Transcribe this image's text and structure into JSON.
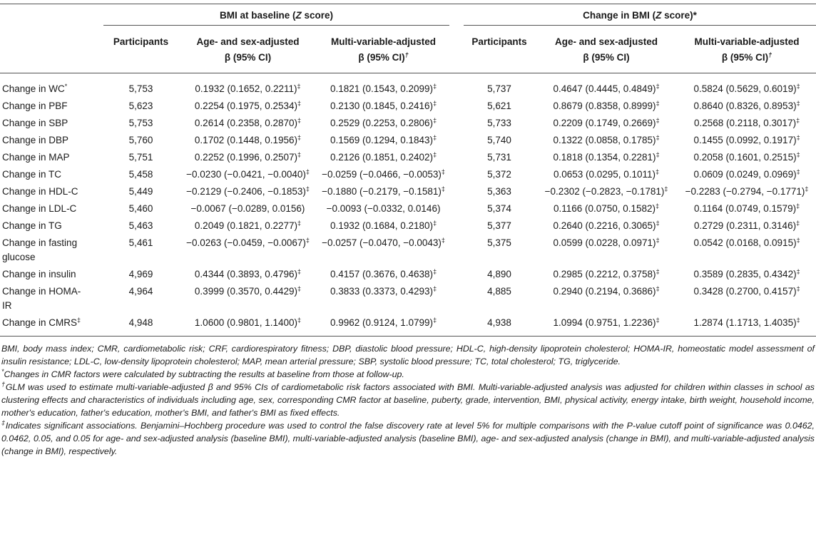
{
  "table": {
    "groups": [
      {
        "title": [
          {
            "text": "BMI at baseline ("
          },
          {
            "text": "Z",
            "italic": true
          },
          {
            "text": " score)"
          }
        ],
        "columns": [
          {
            "line1": "Participants"
          },
          {
            "line1": "Age- and sex-adjusted",
            "line2": "β (95% CI)"
          },
          {
            "line1": "Multi-variable-adjusted",
            "line2": "β (95% CI)",
            "mark": "†"
          }
        ]
      },
      {
        "title": [
          {
            "text": "Change in BMI ("
          },
          {
            "text": "Z",
            "italic": true
          },
          {
            "text": " score)*"
          }
        ],
        "columns": [
          {
            "line1": "Participants"
          },
          {
            "line1": "Age- and sex-adjusted",
            "line2": "β (95% CI)"
          },
          {
            "line1": "Multi-variable-adjusted",
            "line2": "β (95% CI)",
            "mark": "†"
          }
        ]
      }
    ],
    "rows": [
      {
        "label": "Change in WC",
        "label_mark": "*",
        "cells": [
          {
            "text": "5,753"
          },
          {
            "text": "0.1932 (0.1652, 0.2211)",
            "mark": "‡"
          },
          {
            "text": "0.1821 (0.1543, 0.2099)",
            "mark": "‡"
          },
          {
            "text": "5,737"
          },
          {
            "text": "0.4647 (0.4445, 0.4849)",
            "mark": "‡"
          },
          {
            "text": "0.5824 (0.5629, 0.6019)",
            "mark": "‡"
          }
        ]
      },
      {
        "label": "Change in PBF",
        "cells": [
          {
            "text": "5,623"
          },
          {
            "text": "0.2254 (0.1975, 0.2534)",
            "mark": "‡"
          },
          {
            "text": "0.2130 (0.1845, 0.2416)",
            "mark": "‡"
          },
          {
            "text": "5,621"
          },
          {
            "text": "0.8679 (0.8358, 0.8999)",
            "mark": "‡"
          },
          {
            "text": "0.8640 (0.8326, 0.8953)",
            "mark": "‡"
          }
        ]
      },
      {
        "label": "Change in SBP",
        "cells": [
          {
            "text": "5,753"
          },
          {
            "text": "0.2614 (0.2358, 0.2870)",
            "mark": "‡"
          },
          {
            "text": "0.2529 (0.2253, 0.2806)",
            "mark": "‡"
          },
          {
            "text": "5,733"
          },
          {
            "text": "0.2209 (0.1749, 0.2669)",
            "mark": "‡"
          },
          {
            "text": "0.2568 (0.2118, 0.3017)",
            "mark": "‡"
          }
        ]
      },
      {
        "label": "Change in DBP",
        "cells": [
          {
            "text": "5,760"
          },
          {
            "text": "0.1702 (0.1448, 0.1956)",
            "mark": "‡"
          },
          {
            "text": "0.1569 (0.1294, 0.1843)",
            "mark": "‡"
          },
          {
            "text": "5,740"
          },
          {
            "text": "0.1322 (0.0858, 0.1785)",
            "mark": "‡"
          },
          {
            "text": "0.1455 (0.0992, 0.1917)",
            "mark": "‡"
          }
        ]
      },
      {
        "label": "Change in MAP",
        "cells": [
          {
            "text": "5,751"
          },
          {
            "text": "0.2252 (0.1996, 0.2507)",
            "mark": "‡"
          },
          {
            "text": "0.2126 (0.1851, 0.2402)",
            "mark": "‡"
          },
          {
            "text": "5,731"
          },
          {
            "text": "0.1818 (0.1354, 0.2281)",
            "mark": "‡"
          },
          {
            "text": "0.2058 (0.1601, 0.2515)",
            "mark": "‡"
          }
        ]
      },
      {
        "label": "Change in TC",
        "cells": [
          {
            "text": "5,458"
          },
          {
            "text": "−0.0230 (−0.0421, −0.0040)",
            "mark": "‡"
          },
          {
            "text": "−0.0259 (−0.0466, −0.0053)",
            "mark": "‡"
          },
          {
            "text": "5,372"
          },
          {
            "text": "0.0653 (0.0295, 0.1011)",
            "mark": "‡"
          },
          {
            "text": "0.0609 (0.0249, 0.0969)",
            "mark": "‡"
          }
        ]
      },
      {
        "label": "Change in HDL-C",
        "cells": [
          {
            "text": "5,449"
          },
          {
            "text": "−0.2129 (−0.2406, −0.1853)",
            "mark": "‡"
          },
          {
            "text": "−0.1880 (−0.2179, −0.1581)",
            "mark": "‡"
          },
          {
            "text": "5,363"
          },
          {
            "text": "−0.2302 (−0.2823, −0.1781)",
            "mark": "‡"
          },
          {
            "text": "−0.2283 (−0.2794, −0.1771)",
            "mark": "‡"
          }
        ]
      },
      {
        "label": "Change in LDL-C",
        "cells": [
          {
            "text": "5,460"
          },
          {
            "text": "−0.0067 (−0.0289, 0.0156)"
          },
          {
            "text": "−0.0093 (−0.0332, 0.0146)"
          },
          {
            "text": "5,374"
          },
          {
            "text": "0.1166 (0.0750, 0.1582)",
            "mark": "‡"
          },
          {
            "text": "0.1164 (0.0749, 0.1579)",
            "mark": "‡"
          }
        ]
      },
      {
        "label": "Change in TG",
        "cells": [
          {
            "text": "5,463"
          },
          {
            "text": "0.2049 (0.1821, 0.2277)",
            "mark": "‡"
          },
          {
            "text": "0.1932 (0.1684, 0.2180)",
            "mark": "‡"
          },
          {
            "text": "5,377"
          },
          {
            "text": "0.2640 (0.2216, 0.3065)",
            "mark": "‡"
          },
          {
            "text": "0.2729 (0.2311, 0.3146)",
            "mark": "‡"
          }
        ]
      },
      {
        "label": "Change in fasting glucose",
        "cells": [
          {
            "text": "5,461"
          },
          {
            "text": "−0.0263 (−0.0459, −0.0067)",
            "mark": "‡"
          },
          {
            "text": "−0.0257 (−0.0470, −0.0043)",
            "mark": "‡"
          },
          {
            "text": "5,375"
          },
          {
            "text": "0.0599 (0.0228, 0.0971)",
            "mark": "‡"
          },
          {
            "text": "0.0542 (0.0168, 0.0915)",
            "mark": "‡"
          }
        ]
      },
      {
        "label": "Change in insulin",
        "cells": [
          {
            "text": "4,969"
          },
          {
            "text": "0.4344 (0.3893, 0.4796)",
            "mark": "‡"
          },
          {
            "text": "0.4157 (0.3676, 0.4638)",
            "mark": "‡"
          },
          {
            "text": "4,890"
          },
          {
            "text": "0.2985 (0.2212, 0.3758)",
            "mark": "‡"
          },
          {
            "text": "0.3589 (0.2835, 0.4342)",
            "mark": "‡"
          }
        ]
      },
      {
        "label": "Change in HOMA-IR",
        "cells": [
          {
            "text": "4,964"
          },
          {
            "text": "0.3999 (0.3570, 0.4429)",
            "mark": "‡"
          },
          {
            "text": "0.3833 (0.3373, 0.4293)",
            "mark": "‡"
          },
          {
            "text": "4,885"
          },
          {
            "text": "0.2940 (0.2194, 0.3686)",
            "mark": "‡"
          },
          {
            "text": "0.3428 (0.2700, 0.4157)",
            "mark": "‡"
          }
        ]
      },
      {
        "label": "Change in CMRS",
        "label_mark": "‡",
        "cells": [
          {
            "text": "4,948"
          },
          {
            "text": "1.0600 (0.9801, 1.1400)",
            "mark": "‡"
          },
          {
            "text": "0.9962 (0.9124, 1.0799)",
            "mark": "‡"
          },
          {
            "text": "4,938"
          },
          {
            "text": "1.0994 (0.9751, 1.2236)",
            "mark": "‡"
          },
          {
            "text": "1.2874 (1.1713, 1.4035)",
            "mark": "‡"
          }
        ]
      }
    ],
    "footnotes": [
      {
        "text": "BMI, body mass index; CMR, cardiometabolic risk; CRF, cardiorespiratory fitness; DBP, diastolic blood pressure; HDL-C, high-density lipoprotein cholesterol; HOMA-IR, homeostatic model assessment of insulin resistance; LDL-C, low-density lipoprotein cholesterol; MAP, mean arterial pressure; SBP, systolic blood pressure; TC, total cholesterol; TG, triglyceride."
      },
      {
        "mark": "*",
        "text": "Changes in CMR factors were calculated by subtracting the results at baseline from those at follow-up."
      },
      {
        "mark": "†",
        "text": "GLM was used to estimate multi-variable-adjusted β and 95% CIs of cardiometabolic risk factors associated with BMI. Multi-variable-adjusted analysis was adjusted for children within classes in school as clustering effects and characteristics of individuals including age, sex, corresponding CMR factor at baseline, puberty, grade, intervention, BMI, physical activity, energy intake, birth weight, household income, mother's education, father's education, mother's BMI, and father's BMI as fixed effects."
      },
      {
        "mark": "‡",
        "text": "Indicates significant associations. Benjamini–Hochberg procedure was used to control the false discovery rate at level 5% for multiple comparisons with the P-value cutoff point of significance was 0.0462, 0.0462, 0.05, and 0.05 for age- and sex-adjusted analysis (baseline BMI), multi-variable-adjusted analysis (baseline BMI), age- and sex-adjusted analysis (change in BMI), and multi-variable-adjusted analysis (change in BMI), respectively."
      }
    ]
  }
}
